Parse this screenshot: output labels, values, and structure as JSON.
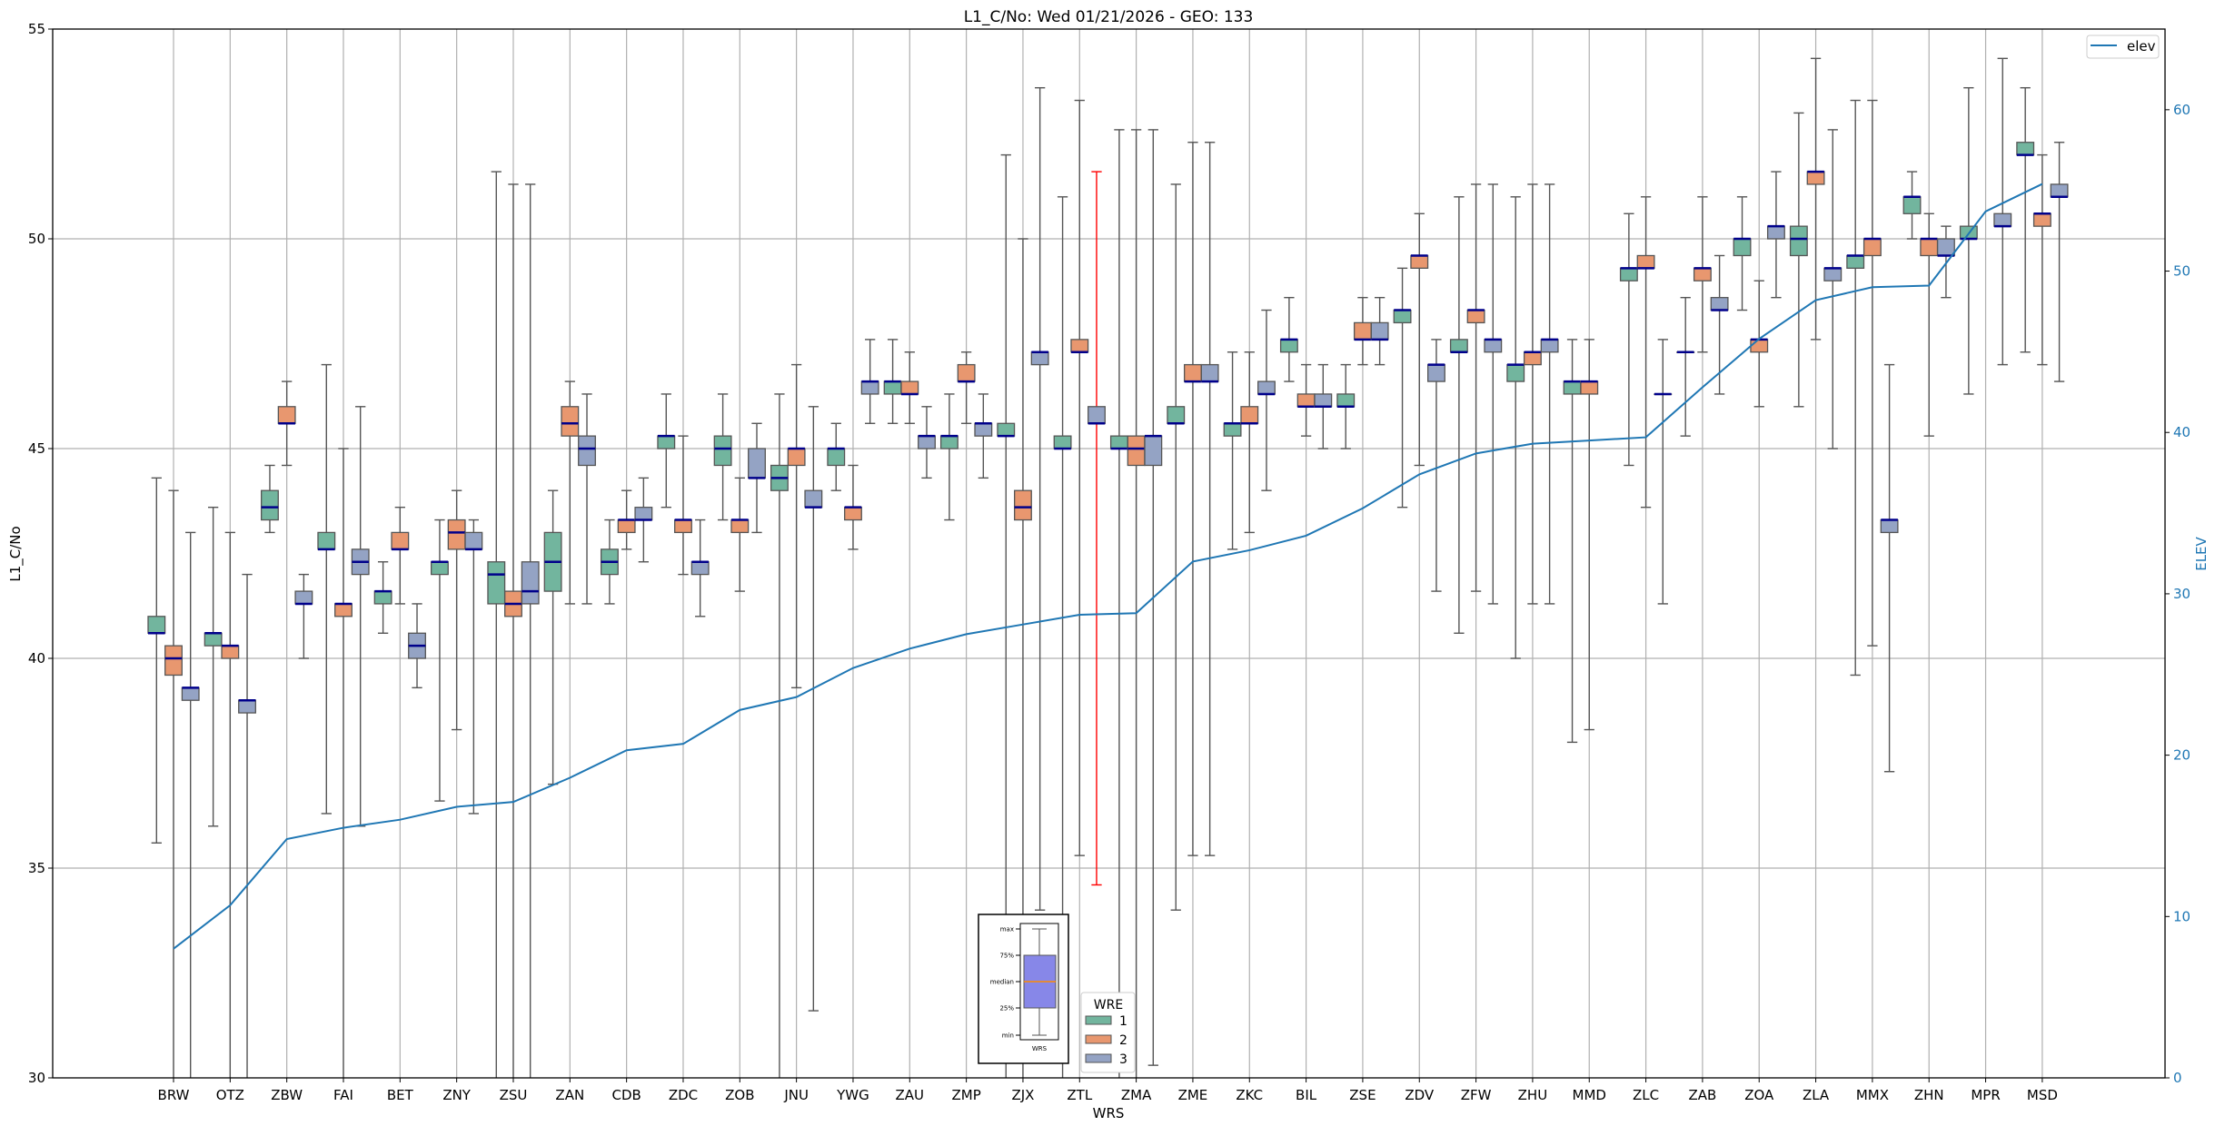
{
  "chart_data": {
    "type": "box",
    "title": "L1_C/No: Wed 01/21/2026 - GEO: 133",
    "xlabel": "WRS",
    "ylabel": "L1_C/No",
    "y2label": "ELEV",
    "ylim": [
      30,
      55
    ],
    "y2lim": [
      0,
      65
    ],
    "yticks": [
      30,
      35,
      40,
      45,
      50,
      55
    ],
    "y2ticks": [
      0,
      10,
      20,
      30,
      40,
      50,
      60
    ],
    "grid": true,
    "categories": [
      "BRW",
      "OTZ",
      "ZBW",
      "FAI",
      "BET",
      "ZNY",
      "ZSU",
      "ZAN",
      "CDB",
      "ZDC",
      "ZOB",
      "JNU",
      "YWG",
      "ZAU",
      "ZMP",
      "ZJX",
      "ZTL",
      "ZMA",
      "ZME",
      "ZKC",
      "BIL",
      "ZSE",
      "ZDV",
      "ZFW",
      "ZHU",
      "MMD",
      "ZLC",
      "ZAB",
      "ZOA",
      "ZLA",
      "MMX",
      "ZHN",
      "MPR",
      "MSD"
    ],
    "box_stat_order": [
      "min",
      "q1",
      "median",
      "q3",
      "max"
    ],
    "groups": [
      {
        "name": "1",
        "color": "#72b59e",
        "boxes": [
          [
            35.6,
            40.6,
            40.6,
            41.0,
            44.3
          ],
          [
            36.0,
            40.3,
            40.6,
            40.6,
            43.6
          ],
          [
            43.0,
            43.3,
            43.6,
            44.0,
            44.6
          ],
          [
            36.3,
            42.6,
            42.6,
            43.0,
            47.0
          ],
          [
            40.6,
            41.3,
            41.6,
            41.6,
            42.3
          ],
          [
            36.6,
            42.0,
            42.3,
            42.3,
            43.3
          ],
          [
            29,
            41.3,
            42.0,
            42.3,
            51.6
          ],
          [
            37.0,
            41.6,
            42.3,
            43.0,
            44.0
          ],
          [
            41.3,
            42.0,
            42.3,
            42.6,
            43.3
          ],
          [
            43.6,
            45.0,
            45.3,
            45.3,
            46.3
          ],
          [
            43.3,
            44.6,
            45.0,
            45.3,
            46.3
          ],
          [
            29,
            44.0,
            44.3,
            44.6,
            46.3
          ],
          [
            44.0,
            44.6,
            45.0,
            45.0,
            45.6
          ],
          [
            45.6,
            46.3,
            46.6,
            46.6,
            47.6
          ],
          [
            43.3,
            45.0,
            45.3,
            45.3,
            46.3
          ],
          [
            29,
            45.3,
            45.3,
            45.6,
            52.0
          ],
          [
            29,
            45.0,
            45.0,
            45.3,
            51.0
          ],
          [
            29,
            45.0,
            45.0,
            45.3,
            52.6
          ],
          [
            34.0,
            45.6,
            45.6,
            46.0,
            51.3
          ],
          [
            42.6,
            45.3,
            45.6,
            45.6,
            47.3
          ],
          [
            46.6,
            47.3,
            47.6,
            47.6,
            48.6
          ],
          [
            45.0,
            46.0,
            46.0,
            46.3,
            47.0
          ],
          [
            43.6,
            48.0,
            48.3,
            48.3,
            49.3
          ],
          [
            40.6,
            47.3,
            47.3,
            47.6,
            51.0
          ],
          [
            40.0,
            46.6,
            47.0,
            47.0,
            51.0
          ],
          [
            38.0,
            46.3,
            46.6,
            46.6,
            47.6
          ],
          [
            44.6,
            49.0,
            49.3,
            49.3,
            50.6
          ],
          [
            45.3,
            47.3,
            47.3,
            47.3,
            48.6
          ],
          [
            48.3,
            49.6,
            50.0,
            50.0,
            51.0
          ],
          [
            46.0,
            49.6,
            50.0,
            50.3,
            53.0
          ],
          [
            39.6,
            49.3,
            49.6,
            49.6,
            53.3
          ],
          [
            50.0,
            50.6,
            51.0,
            51.0,
            51.6
          ],
          [
            46.3,
            50.0,
            50.0,
            50.3,
            53.6
          ],
          [
            47.3,
            52.0,
            52.0,
            52.3,
            53.6
          ]
        ]
      },
      {
        "name": "2",
        "color": "#e8976f",
        "boxes": [
          [
            29,
            39.6,
            40.0,
            40.3,
            44.0
          ],
          [
            29,
            40.0,
            40.3,
            40.3,
            43.0
          ],
          [
            44.6,
            45.6,
            45.6,
            46.0,
            46.6
          ],
          [
            29,
            41.0,
            41.3,
            41.3,
            45.0
          ],
          [
            41.3,
            42.6,
            42.6,
            43.0,
            43.6
          ],
          [
            38.3,
            42.6,
            43.0,
            43.3,
            44.0
          ],
          [
            29,
            41.0,
            41.3,
            41.6,
            51.3
          ],
          [
            41.3,
            45.3,
            45.6,
            46.0,
            46.6
          ],
          [
            42.6,
            43.0,
            43.3,
            43.3,
            44.0
          ],
          [
            42.0,
            43.0,
            43.3,
            43.3,
            45.3
          ],
          [
            41.6,
            43.0,
            43.3,
            43.3,
            44.3
          ],
          [
            39.3,
            44.6,
            45.0,
            45.0,
            47.0
          ],
          [
            42.6,
            43.3,
            43.6,
            43.6,
            44.6
          ],
          [
            45.6,
            46.3,
            46.3,
            46.6,
            47.3
          ],
          [
            45.6,
            46.6,
            46.6,
            47.0,
            47.3
          ],
          [
            29,
            43.3,
            43.6,
            44.0,
            50.0
          ],
          [
            35.3,
            47.3,
            47.3,
            47.6,
            53.3
          ],
          [
            29,
            44.6,
            45.0,
            45.3,
            52.6
          ],
          [
            35.3,
            46.6,
            46.6,
            47.0,
            52.3
          ],
          [
            43.0,
            45.6,
            45.6,
            46.0,
            47.3
          ],
          [
            45.3,
            46.0,
            46.0,
            46.3,
            47.0
          ],
          [
            47.0,
            47.6,
            47.6,
            48.0,
            48.6
          ],
          [
            44.6,
            49.3,
            49.6,
            49.6,
            50.6
          ],
          [
            41.6,
            48.0,
            48.3,
            48.3,
            51.3
          ],
          [
            41.3,
            47.0,
            47.3,
            47.3,
            51.3
          ],
          [
            38.3,
            46.3,
            46.6,
            46.6,
            47.6
          ],
          [
            43.6,
            49.3,
            49.3,
            49.6,
            51.0
          ],
          [
            47.3,
            49.0,
            49.3,
            49.3,
            51.0
          ],
          [
            46.0,
            47.3,
            47.6,
            47.6,
            49.0
          ],
          [
            47.6,
            51.3,
            51.6,
            51.6,
            54.3
          ],
          [
            40.3,
            49.6,
            50.0,
            50.0,
            53.3
          ],
          [
            45.3,
            49.6,
            50.0,
            50.0,
            50.6
          ],
          null,
          [
            47.0,
            50.3,
            50.6,
            50.6,
            52.0
          ]
        ]
      },
      {
        "name": "3",
        "color": "#94a3c4",
        "boxes": [
          [
            29,
            39.0,
            39.3,
            39.3,
            43.0
          ],
          [
            29,
            38.7,
            39.0,
            39.0,
            42.0
          ],
          [
            40.0,
            41.3,
            41.3,
            41.6,
            42.0
          ],
          [
            36.0,
            42.0,
            42.3,
            42.6,
            46.0
          ],
          [
            39.3,
            40.0,
            40.3,
            40.6,
            41.3
          ],
          [
            36.3,
            42.6,
            42.6,
            43.0,
            43.3
          ],
          [
            29,
            41.3,
            41.6,
            42.3,
            51.3
          ],
          [
            41.3,
            44.6,
            45.0,
            45.3,
            46.3
          ],
          [
            42.3,
            43.3,
            43.3,
            43.6,
            44.3
          ],
          [
            41.0,
            42.0,
            42.3,
            42.3,
            43.3
          ],
          [
            43.0,
            44.3,
            44.3,
            45.0,
            45.6
          ],
          [
            31.6,
            43.6,
            43.6,
            44.0,
            46.0
          ],
          [
            45.6,
            46.3,
            46.6,
            46.6,
            47.6
          ],
          [
            44.3,
            45.0,
            45.3,
            45.3,
            46.0
          ],
          [
            44.3,
            45.3,
            45.6,
            45.6,
            46.3
          ],
          [
            34.0,
            47.0,
            47.3,
            47.3,
            53.6
          ],
          [
            34.6,
            45.6,
            45.6,
            46.0,
            51.6
          ],
          [
            30.3,
            44.6,
            45.3,
            45.3,
            52.6
          ],
          [
            35.3,
            46.6,
            46.6,
            47.0,
            52.3
          ],
          [
            44.0,
            46.3,
            46.3,
            46.6,
            48.3
          ],
          [
            45.0,
            46.0,
            46.0,
            46.3,
            47.0
          ],
          [
            47.0,
            47.6,
            47.6,
            48.0,
            48.6
          ],
          [
            41.6,
            46.6,
            47.0,
            47.0,
            47.6
          ],
          [
            41.3,
            47.3,
            47.6,
            47.6,
            51.3
          ],
          [
            41.3,
            47.3,
            47.6,
            47.6,
            51.3
          ],
          null,
          [
            41.3,
            46.3,
            46.3,
            46.3,
            47.6
          ],
          [
            46.3,
            48.3,
            48.3,
            48.6,
            49.6
          ],
          [
            48.6,
            50.0,
            50.3,
            50.3,
            51.6
          ],
          [
            45.0,
            49.0,
            49.3,
            49.3,
            52.6
          ],
          [
            37.3,
            43.0,
            43.3,
            43.3,
            47.0
          ],
          [
            48.6,
            49.6,
            49.6,
            50.0,
            50.3
          ],
          [
            47.0,
            50.3,
            50.3,
            50.6,
            54.3
          ],
          [
            46.6,
            51.0,
            51.0,
            51.3,
            52.3
          ]
        ]
      }
    ],
    "highlighted_whiskers": [
      {
        "category": "ZTL",
        "group": "3",
        "color": "#ff0000"
      }
    ],
    "median_color": "#00008b",
    "line_series": {
      "name": "elev",
      "color": "#1f77b4",
      "axis": "right",
      "values": [
        8.0,
        10.7,
        14.8,
        15.5,
        16.0,
        16.8,
        17.1,
        18.6,
        20.3,
        20.7,
        22.8,
        23.6,
        25.4,
        26.6,
        27.5,
        28.1,
        28.7,
        28.8,
        32.0,
        32.7,
        33.6,
        35.3,
        37.4,
        38.7,
        39.3,
        39.5,
        39.7,
        42.8,
        45.8,
        48.2,
        49.0,
        49.1,
        53.7,
        55.4
      ]
    },
    "legend_wre": {
      "title": "WRE",
      "position": "bottom-center",
      "entries": [
        "1",
        "2",
        "3"
      ]
    },
    "legend_line": {
      "position": "top-right",
      "entries": [
        "elev"
      ]
    },
    "key_inset": {
      "labels": [
        "max",
        "75%",
        "median",
        "25%",
        "min"
      ],
      "xlabel": "WRS"
    }
  }
}
